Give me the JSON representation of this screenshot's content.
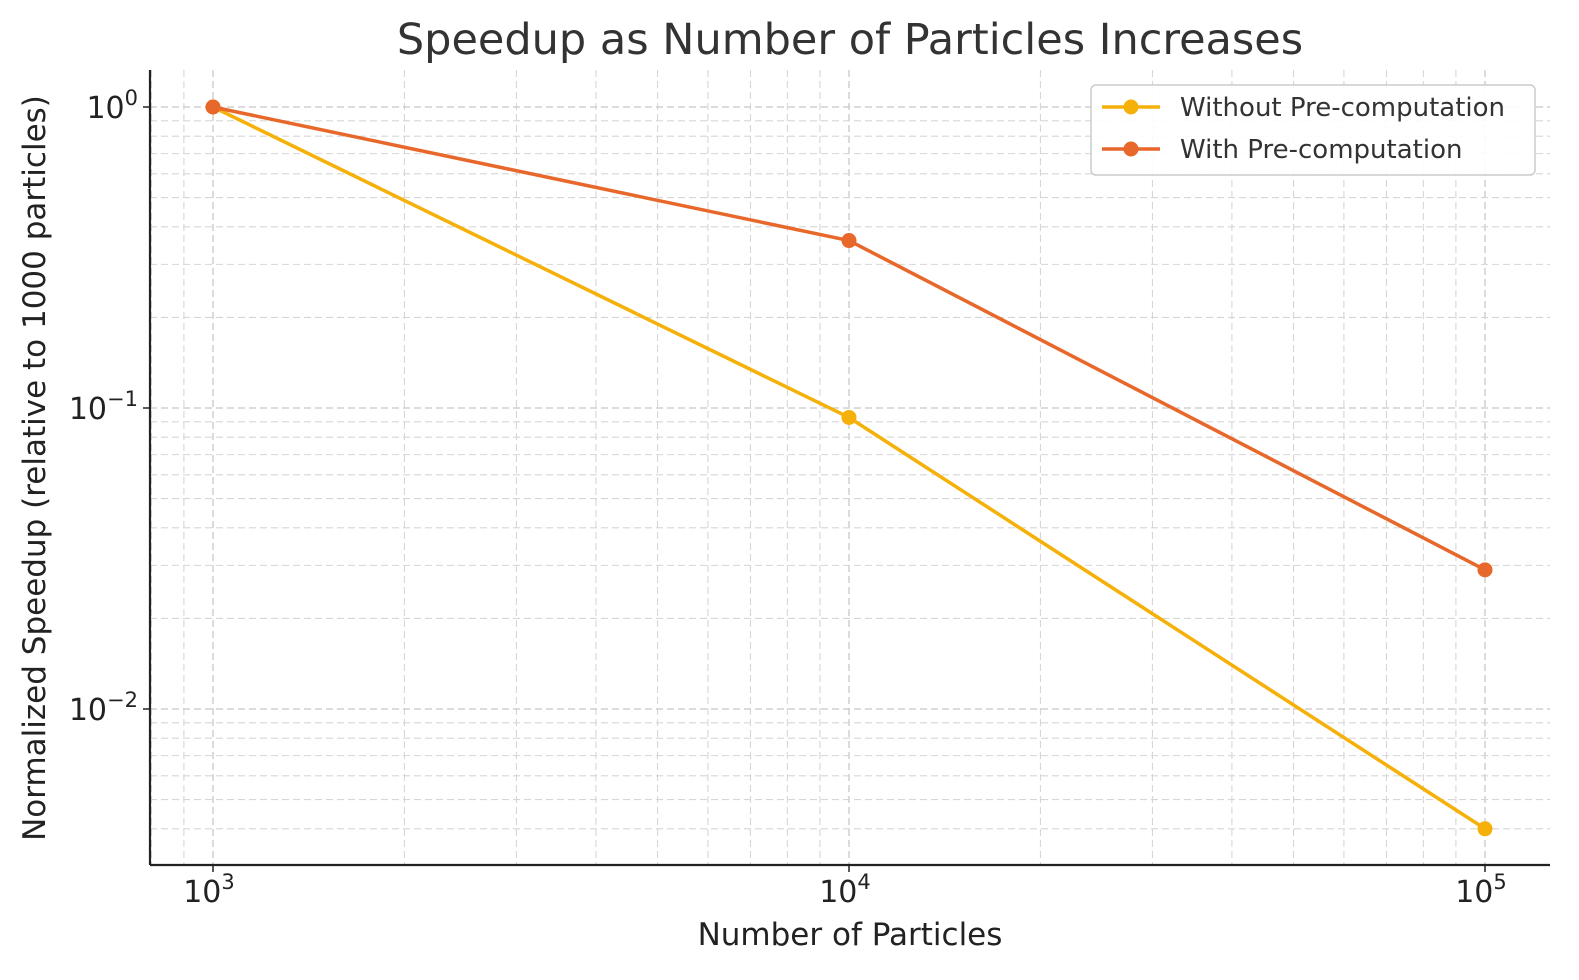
{
  "chart_data": {
    "type": "line",
    "title": "Speedup as Number of Particles Increases",
    "xlabel": "Number of Particles",
    "ylabel": "Normalized Speedup (relative to 1000 particles)",
    "x_scale": "log",
    "y_scale": "log",
    "x": [
      1000,
      10000,
      100000
    ],
    "xlim": [
      800,
      125000
    ],
    "ylim": [
      0.0033,
      1.35
    ],
    "x_ticks": [
      {
        "value": 1000,
        "base": "10",
        "exp": "3"
      },
      {
        "value": 10000,
        "base": "10",
        "exp": "4"
      },
      {
        "value": 100000,
        "base": "10",
        "exp": "5"
      }
    ],
    "y_ticks": [
      {
        "value": 1,
        "base": "10",
        "exp": "0"
      },
      {
        "value": 0.1,
        "base": "10",
        "exp": "−1"
      },
      {
        "value": 0.01,
        "base": "10",
        "exp": "−2"
      }
    ],
    "grid": true,
    "legend_position": "top-right",
    "series": [
      {
        "name": "Without Pre-computation",
        "color": "#f5b10a",
        "values": [
          1.0,
          0.093,
          0.004
        ]
      },
      {
        "name": "With Pre-computation",
        "color": "#e8672a",
        "values": [
          1.0,
          0.36,
          0.029
        ]
      }
    ]
  }
}
